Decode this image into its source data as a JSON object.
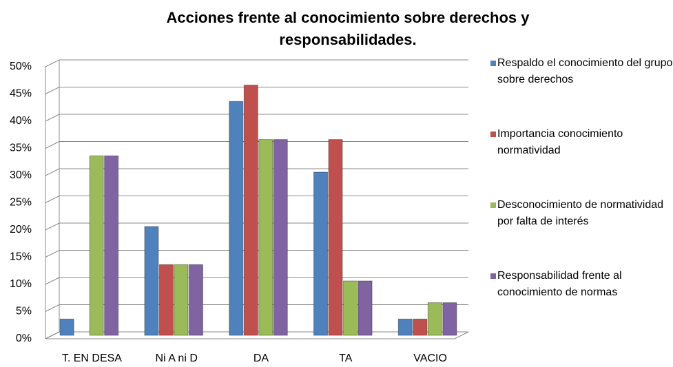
{
  "chart_data": {
    "type": "bar",
    "title": "Acciones frente al conocimiento sobre derechos y responsabilidades.",
    "categories": [
      "T. EN DESA",
      "Ni A ni D",
      "DA",
      "TA",
      "VACIO"
    ],
    "series": [
      {
        "name": "Respaldo el conocimiento del grupo sobre derechos",
        "color": "#4f81bd",
        "values": [
          3,
          20,
          43,
          30,
          3
        ]
      },
      {
        "name": "Importancia conocimiento normatividad",
        "color": "#c0504d",
        "values": [
          0,
          13,
          46,
          36,
          3
        ]
      },
      {
        "name": "Desconocimiento de normatividad por falta de interés",
        "color": "#9bbb59",
        "values": [
          33,
          13,
          36,
          10,
          6
        ]
      },
      {
        "name": "Responsabilidad frente al conocimiento de normas",
        "color": "#8064a2",
        "values": [
          33,
          13,
          36,
          10,
          6
        ]
      }
    ],
    "ylim": [
      0,
      50
    ],
    "yticks": [
      {
        "value": 0,
        "label": "0%"
      },
      {
        "value": 5,
        "label": "5%"
      },
      {
        "value": 10,
        "label": "10%"
      },
      {
        "value": 15,
        "label": "15%"
      },
      {
        "value": 20,
        "label": "20%"
      },
      {
        "value": 25,
        "label": "25%"
      },
      {
        "value": 30,
        "label": "30%"
      },
      {
        "value": 35,
        "label": "35%"
      },
      {
        "value": 40,
        "label": "40%"
      },
      {
        "value": 45,
        "label": "45%"
      },
      {
        "value": 50,
        "label": "50%"
      }
    ],
    "grid": true,
    "legend": "right"
  }
}
